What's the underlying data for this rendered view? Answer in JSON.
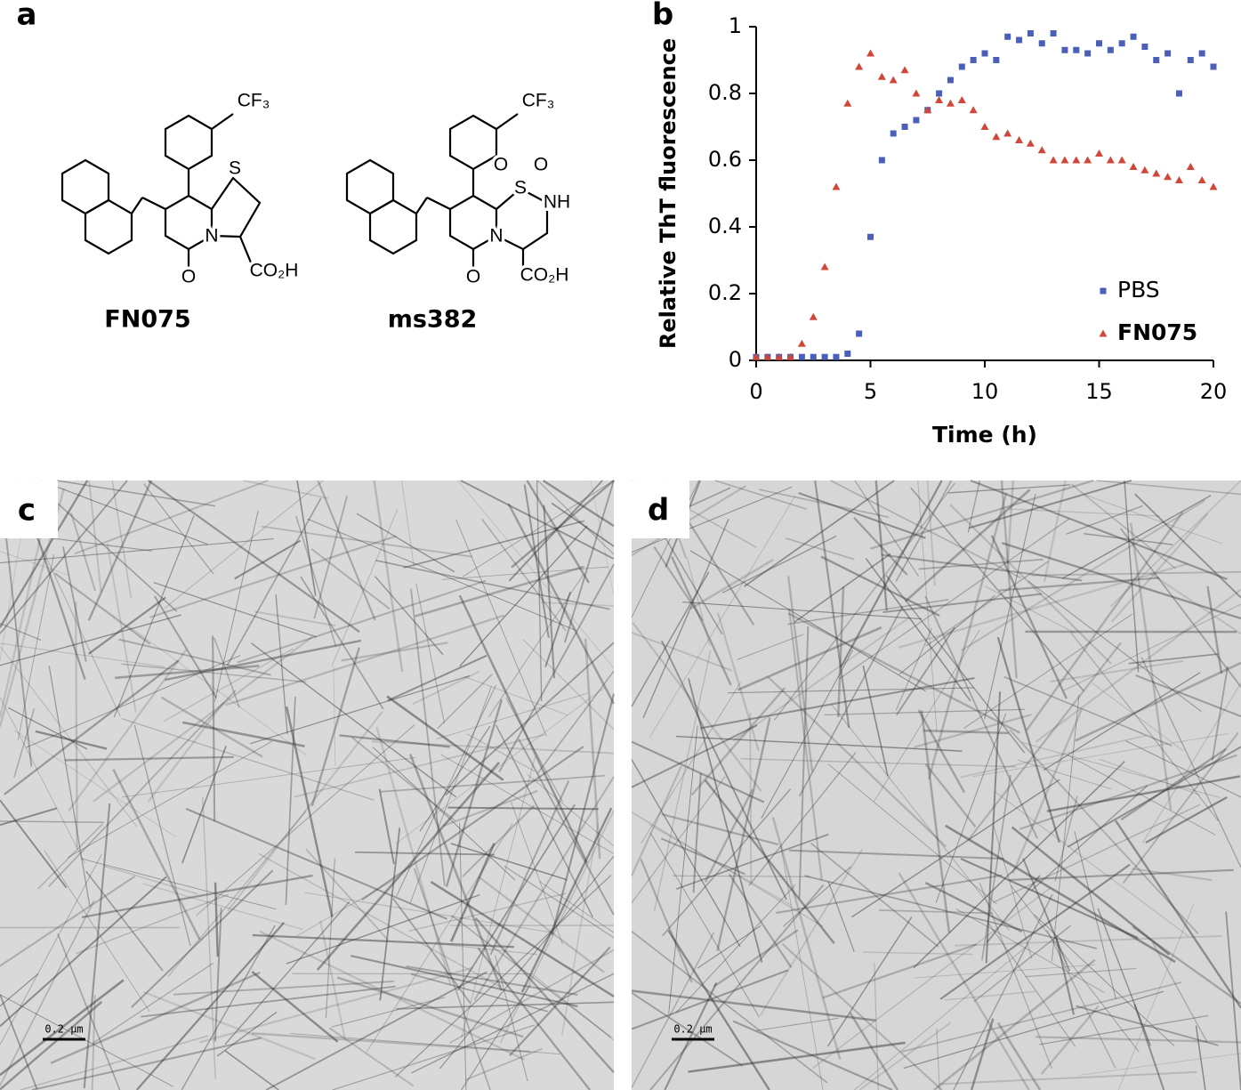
{
  "labels": [
    "a",
    "b",
    "c",
    "d"
  ],
  "structures": [
    {
      "name": "FN075",
      "atoms": [
        "CF₃",
        "S",
        "N",
        "O",
        "CO₂H"
      ]
    },
    {
      "name": "ms382",
      "atoms": [
        "CF₃",
        "O",
        "S",
        "O",
        "NH",
        "N",
        "O",
        "CO₂H"
      ]
    }
  ],
  "chart_data": {
    "type": "scatter",
    "x_label": "Time (h)",
    "y_label": "Relative ThT fluorescence",
    "x": [
      0,
      0.5,
      1,
      1.5,
      2,
      2.5,
      3,
      3.5,
      4,
      4.5,
      5,
      5.5,
      6,
      6.5,
      7,
      7.5,
      8,
      8.5,
      9,
      9.5,
      10,
      10.5,
      11,
      11.5,
      12,
      12.5,
      13,
      13.5,
      14,
      14.5,
      15,
      15.5,
      16,
      16.5,
      17,
      17.5,
      18,
      18.5,
      19,
      19.5,
      20
    ],
    "series": [
      {
        "name": "PBS",
        "color": "#4a5fb8",
        "marker": "square",
        "values": [
          0.01,
          0.01,
          0.01,
          0.01,
          0.01,
          0.01,
          0.01,
          0.01,
          0.02,
          0.08,
          0.37,
          0.6,
          0.68,
          0.7,
          0.72,
          0.75,
          0.8,
          0.84,
          0.88,
          0.9,
          0.92,
          0.9,
          0.97,
          0.96,
          0.98,
          0.95,
          0.98,
          0.93,
          0.93,
          0.92,
          0.95,
          0.93,
          0.95,
          0.97,
          0.94,
          0.9,
          0.92,
          0.8,
          0.9,
          0.92,
          0.88
        ]
      },
      {
        "name": "FN075",
        "color": "#d0473a",
        "marker": "triangle",
        "values": [
          0.01,
          0.01,
          0.01,
          0.01,
          0.05,
          0.13,
          0.28,
          0.52,
          0.77,
          0.88,
          0.92,
          0.85,
          0.84,
          0.87,
          0.8,
          0.75,
          0.78,
          0.77,
          0.78,
          0.75,
          0.7,
          0.67,
          0.68,
          0.66,
          0.65,
          0.63,
          0.6,
          0.6,
          0.6,
          0.6,
          0.62,
          0.6,
          0.6,
          0.58,
          0.57,
          0.56,
          0.55,
          0.54,
          0.58,
          0.54,
          0.52
        ]
      }
    ],
    "xlim": [
      0,
      20
    ],
    "ylim": [
      0,
      1
    ],
    "xticks": [
      0,
      5,
      10,
      15,
      20
    ],
    "yticks": [
      0,
      0.2,
      0.4,
      0.6,
      0.8,
      1
    ],
    "legend": "lower right",
    "grid": false
  },
  "micrographs": [
    {
      "scale_bar": "0.2 µm"
    },
    {
      "scale_bar": "0.2 µm"
    }
  ]
}
